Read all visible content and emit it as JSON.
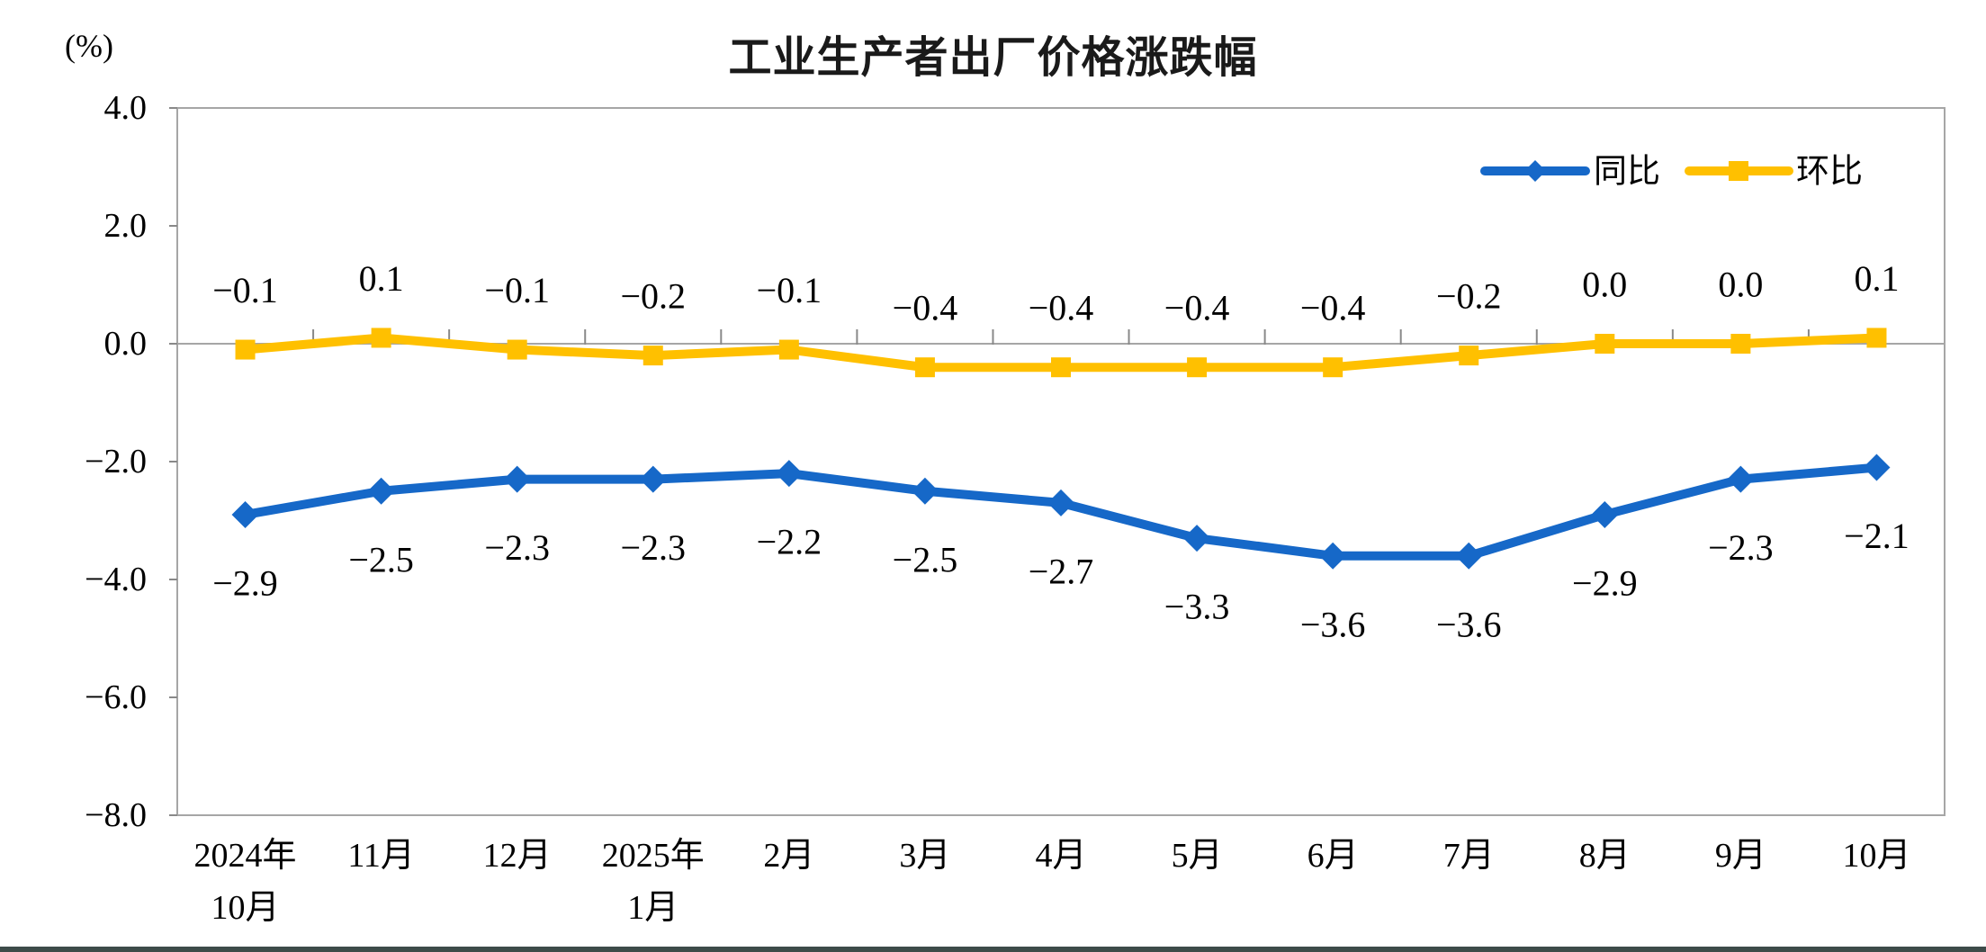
{
  "page": {
    "background_color": "#ffffff",
    "bottom_bar_color": "#3d4b49"
  },
  "chart_data": {
    "type": "line",
    "title": "工业生产者出厂价格涨跌幅",
    "unit_label": "(%)",
    "categories": [
      "2024年\n10月",
      "11月",
      "12月",
      "2025年\n1月",
      "2月",
      "3月",
      "4月",
      "5月",
      "6月",
      "7月",
      "8月",
      "9月",
      "10月"
    ],
    "series": [
      {
        "name": "同比",
        "color": "#1668C8",
        "marker": "diamond",
        "label_position": "below",
        "values": [
          -2.9,
          -2.5,
          -2.3,
          -2.3,
          -2.2,
          -2.5,
          -2.7,
          -3.3,
          -3.6,
          -3.6,
          -2.9,
          -2.3,
          -2.1
        ],
        "labels": [
          "-2.9",
          "-2.5",
          "-2.3",
          "-2.3",
          "-2.2",
          "-2.5",
          "-2.7",
          "-3.3",
          "-3.6",
          "-3.6",
          "-2.9",
          "-2.3",
          "-2.1"
        ]
      },
      {
        "name": "环比",
        "color": "#FFC000",
        "marker": "square",
        "label_position": "above",
        "values": [
          -0.1,
          0.1,
          -0.1,
          -0.2,
          -0.1,
          -0.4,
          -0.4,
          -0.4,
          -0.4,
          -0.2,
          0.0,
          0.0,
          0.1
        ],
        "labels": [
          "-0.1",
          "0.1",
          "-0.1",
          "-0.2",
          "-0.1",
          "-0.4",
          "-0.4",
          "-0.4",
          "-0.4",
          "-0.2",
          "0.0",
          "0.0",
          "0.1"
        ]
      }
    ],
    "y_ticks": [
      "4.0",
      "2.0",
      "0.0",
      "-2.0",
      "-4.0",
      "-6.0",
      "-8.0"
    ],
    "ylim": [
      -8,
      4
    ],
    "xlabel": "",
    "ylabel": "(%)",
    "grid": "zero-line-only",
    "legend_position": "top-right-inside",
    "legend": [
      "同比",
      "环比"
    ]
  }
}
